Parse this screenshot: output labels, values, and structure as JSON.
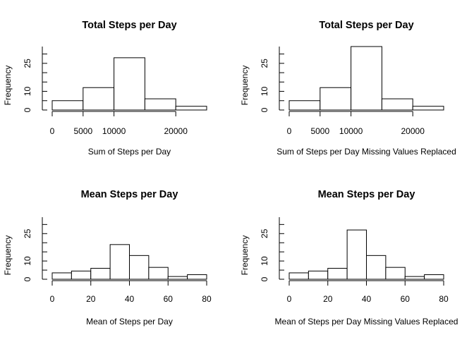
{
  "chart_data": [
    {
      "type": "bar",
      "title": "Total Steps per Day",
      "xlabel": "Sum of Steps per Day",
      "ylabel": "Frequency",
      "bins": [
        [
          0,
          5000
        ],
        [
          5000,
          10000
        ],
        [
          10000,
          15000
        ],
        [
          15000,
          20000
        ],
        [
          20000,
          25000
        ]
      ],
      "values": [
        5,
        12,
        28,
        6,
        2
      ],
      "xlim": [
        0,
        25000
      ],
      "xticks": [
        0,
        5000,
        10000,
        20000
      ],
      "xtick_labels": [
        "0",
        "5000",
        "10000",
        "20000"
      ],
      "ylim": [
        0,
        34
      ],
      "yticks": [
        0,
        10,
        25
      ],
      "ytick_labels": [
        "0",
        "10",
        "25"
      ],
      "grid": false
    },
    {
      "type": "bar",
      "title": "Total Steps per Day",
      "xlabel": "Sum of Steps per Day Missing Values Replaced",
      "ylabel": "Frequency",
      "bins": [
        [
          0,
          5000
        ],
        [
          5000,
          10000
        ],
        [
          10000,
          15000
        ],
        [
          15000,
          20000
        ],
        [
          20000,
          25000
        ]
      ],
      "values": [
        5,
        12,
        34,
        6,
        2
      ],
      "xlim": [
        0,
        25000
      ],
      "xticks": [
        0,
        5000,
        10000,
        20000
      ],
      "xtick_labels": [
        "0",
        "5000",
        "10000",
        "20000"
      ],
      "ylim": [
        0,
        34
      ],
      "yticks": [
        0,
        10,
        25
      ],
      "ytick_labels": [
        "0",
        "10",
        "25"
      ],
      "grid": false
    },
    {
      "type": "bar",
      "title": "Mean Steps per Day",
      "xlabel": "Mean of Steps per Day",
      "ylabel": "Frequency",
      "bins": [
        [
          0,
          10
        ],
        [
          10,
          20
        ],
        [
          20,
          30
        ],
        [
          30,
          40
        ],
        [
          40,
          50
        ],
        [
          50,
          60
        ],
        [
          60,
          70
        ],
        [
          70,
          80
        ]
      ],
      "values": [
        3.5,
        4.5,
        6,
        19,
        13,
        6.5,
        1.5,
        2.5
      ],
      "xlim": [
        0,
        80
      ],
      "xticks": [
        0,
        20,
        40,
        60,
        80
      ],
      "xtick_labels": [
        "0",
        "20",
        "40",
        "60",
        "80"
      ],
      "ylim": [
        0,
        34
      ],
      "yticks": [
        0,
        10,
        25
      ],
      "ytick_labels": [
        "0",
        "10",
        "25"
      ],
      "grid": false
    },
    {
      "type": "bar",
      "title": "Mean Steps per Day",
      "xlabel": "Mean of Steps per Day Missing Values Replaced",
      "ylabel": "Frequency",
      "bins": [
        [
          0,
          10
        ],
        [
          10,
          20
        ],
        [
          20,
          30
        ],
        [
          30,
          40
        ],
        [
          40,
          50
        ],
        [
          50,
          60
        ],
        [
          60,
          70
        ],
        [
          70,
          80
        ]
      ],
      "values": [
        3.5,
        4.5,
        6,
        27,
        13,
        6.5,
        1.5,
        2.5
      ],
      "xlim": [
        0,
        80
      ],
      "xticks": [
        0,
        20,
        40,
        60,
        80
      ],
      "xtick_labels": [
        "0",
        "20",
        "40",
        "60",
        "80"
      ],
      "ylim": [
        0,
        34
      ],
      "yticks": [
        0,
        10,
        25
      ],
      "ytick_labels": [
        "0",
        "10",
        "25"
      ],
      "grid": false
    }
  ]
}
